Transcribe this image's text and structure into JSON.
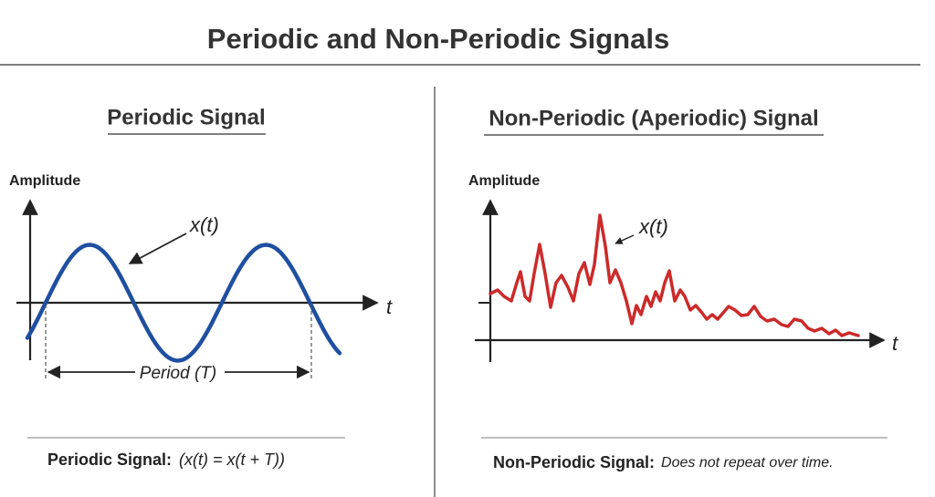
{
  "title": "Periodic and Non-Periodic Signals",
  "left": {
    "heading": "Periodic Signal",
    "y_label": "Amplitude",
    "x_label": "t",
    "curve_label": "x(t)",
    "period_label": "Period (T)",
    "caption_bold": "Periodic Signal:",
    "caption_formula": "(x(t) = x(t + T))"
  },
  "right": {
    "heading": "Non-Periodic (Aperiodic) Signal",
    "y_label": "Amplitude",
    "x_label": "t",
    "curve_label": "x(t)",
    "caption_bold": "Non-Periodic Signal:",
    "caption_text": "Does not repeat over time."
  }
}
